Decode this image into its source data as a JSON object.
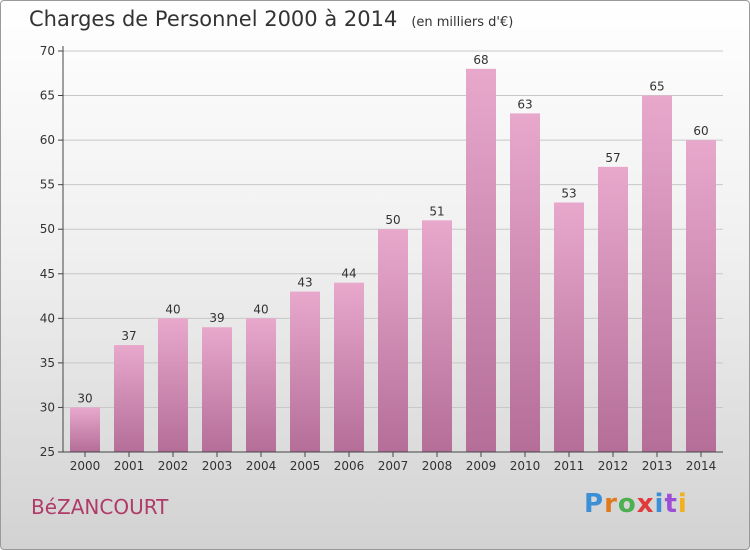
{
  "title": "Charges de Personnel 2000 à 2014",
  "subtitle": "(en milliers d'€)",
  "commune": "BéZANCOURT",
  "logo": {
    "text": "Proxiti",
    "colors": [
      "#3a8fd6",
      "#e07a1f",
      "#4caf50",
      "#e03a3a",
      "#3a8fd6",
      "#9c4fd6",
      "#f2b01e"
    ]
  },
  "colors": {
    "bar_top": "#e8a8cc",
    "bar_bottom": "#b46e98",
    "axis": "#444444",
    "grid": "#c8c8c8",
    "commune": "#b03a68"
  },
  "chart_data": {
    "type": "bar",
    "categories": [
      "2000",
      "2001",
      "2002",
      "2003",
      "2004",
      "2005",
      "2006",
      "2007",
      "2008",
      "2009",
      "2010",
      "2011",
      "2012",
      "2013",
      "2014"
    ],
    "values": [
      30,
      37,
      40,
      39,
      40,
      43,
      44,
      50,
      51,
      68,
      63,
      53,
      57,
      65,
      60
    ],
    "ylim": [
      25,
      70
    ],
    "yticks": [
      25,
      30,
      35,
      40,
      45,
      50,
      55,
      60,
      65,
      70
    ],
    "grid": true,
    "title": "Charges de Personnel 2000 à 2014",
    "xlabel": "",
    "ylabel": ""
  }
}
